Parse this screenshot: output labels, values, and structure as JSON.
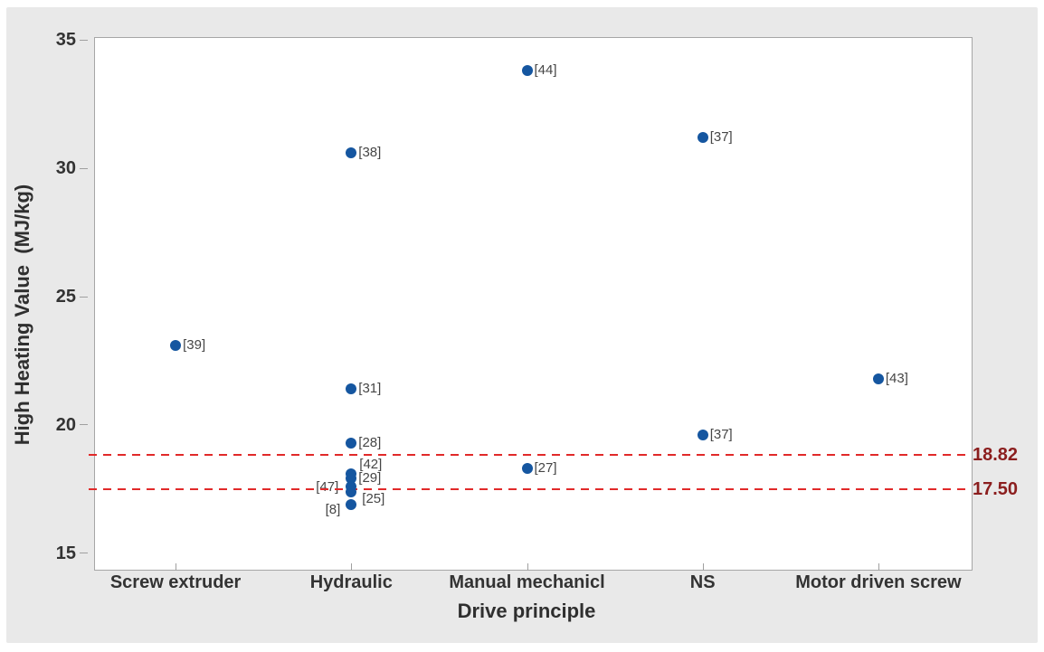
{
  "figure": {
    "background_color": "#e9e9e9",
    "plot_background": "#ffffff"
  },
  "chart_data": {
    "type": "scatter",
    "title": "",
    "xlabel": "Drive principle",
    "ylabel": "High Heating Value  (MJ/kg)",
    "categories": [
      "Screw extruder",
      "Hydraulic",
      "Manual mechanicl",
      "NS",
      "Motor driven screw"
    ],
    "yticks": [
      35,
      30,
      25,
      20,
      15
    ],
    "ylim": [
      14.6,
      35.4
    ],
    "grid": false,
    "legend": false,
    "points": [
      {
        "category": "Screw extruder",
        "category_index": 0,
        "value": 23.1,
        "label": "[39]",
        "label_pos": "right"
      },
      {
        "category": "Hydraulic",
        "category_index": 1,
        "value": 30.6,
        "label": "[38]",
        "label_pos": "right"
      },
      {
        "category": "Hydraulic",
        "category_index": 1,
        "value": 21.4,
        "label": "[31]",
        "label_pos": "right"
      },
      {
        "category": "Hydraulic",
        "category_index": 1,
        "value": 19.3,
        "label": "[28]",
        "label_pos": "right"
      },
      {
        "category": "Hydraulic",
        "category_index": 1,
        "value": 18.1,
        "label": "[42]",
        "label_pos": "above-right"
      },
      {
        "category": "Hydraulic",
        "category_index": 1,
        "value": 17.9,
        "label": "[29]",
        "label_pos": "right"
      },
      {
        "category": "Hydraulic",
        "category_index": 1,
        "value": 17.6,
        "label": "[47]",
        "label_pos": "left"
      },
      {
        "category": "Hydraulic",
        "category_index": 1,
        "value": 17.4,
        "label": "[25]",
        "label_pos": "below-right"
      },
      {
        "category": "Hydraulic",
        "category_index": 1,
        "value": 16.9,
        "label": "[8]",
        "label_pos": "below-left"
      },
      {
        "category": "Manual mechanicl",
        "category_index": 2,
        "value": 33.8,
        "label": "[44]",
        "label_pos": "right"
      },
      {
        "category": "Manual mechanicl",
        "category_index": 2,
        "value": 18.3,
        "label": "[27]",
        "label_pos": "right"
      },
      {
        "category": "NS",
        "category_index": 3,
        "value": 31.2,
        "label": "[37]",
        "label_pos": "right"
      },
      {
        "category": "NS",
        "category_index": 3,
        "value": 19.6,
        "label": "[37]",
        "label_pos": "right"
      },
      {
        "category": "Motor driven screw",
        "category_index": 4,
        "value": 21.8,
        "label": "[43]",
        "label_pos": "right"
      }
    ],
    "reference_lines": [
      {
        "value": 18.82,
        "label": "18.82"
      },
      {
        "value": 17.5,
        "label": "17.50"
      }
    ],
    "colors": {
      "point": "#1556a0",
      "reference_line": "#e12a2a",
      "reference_label": "#8b1e1e",
      "axis_text": "#333333",
      "point_label_text": "#464646"
    }
  }
}
